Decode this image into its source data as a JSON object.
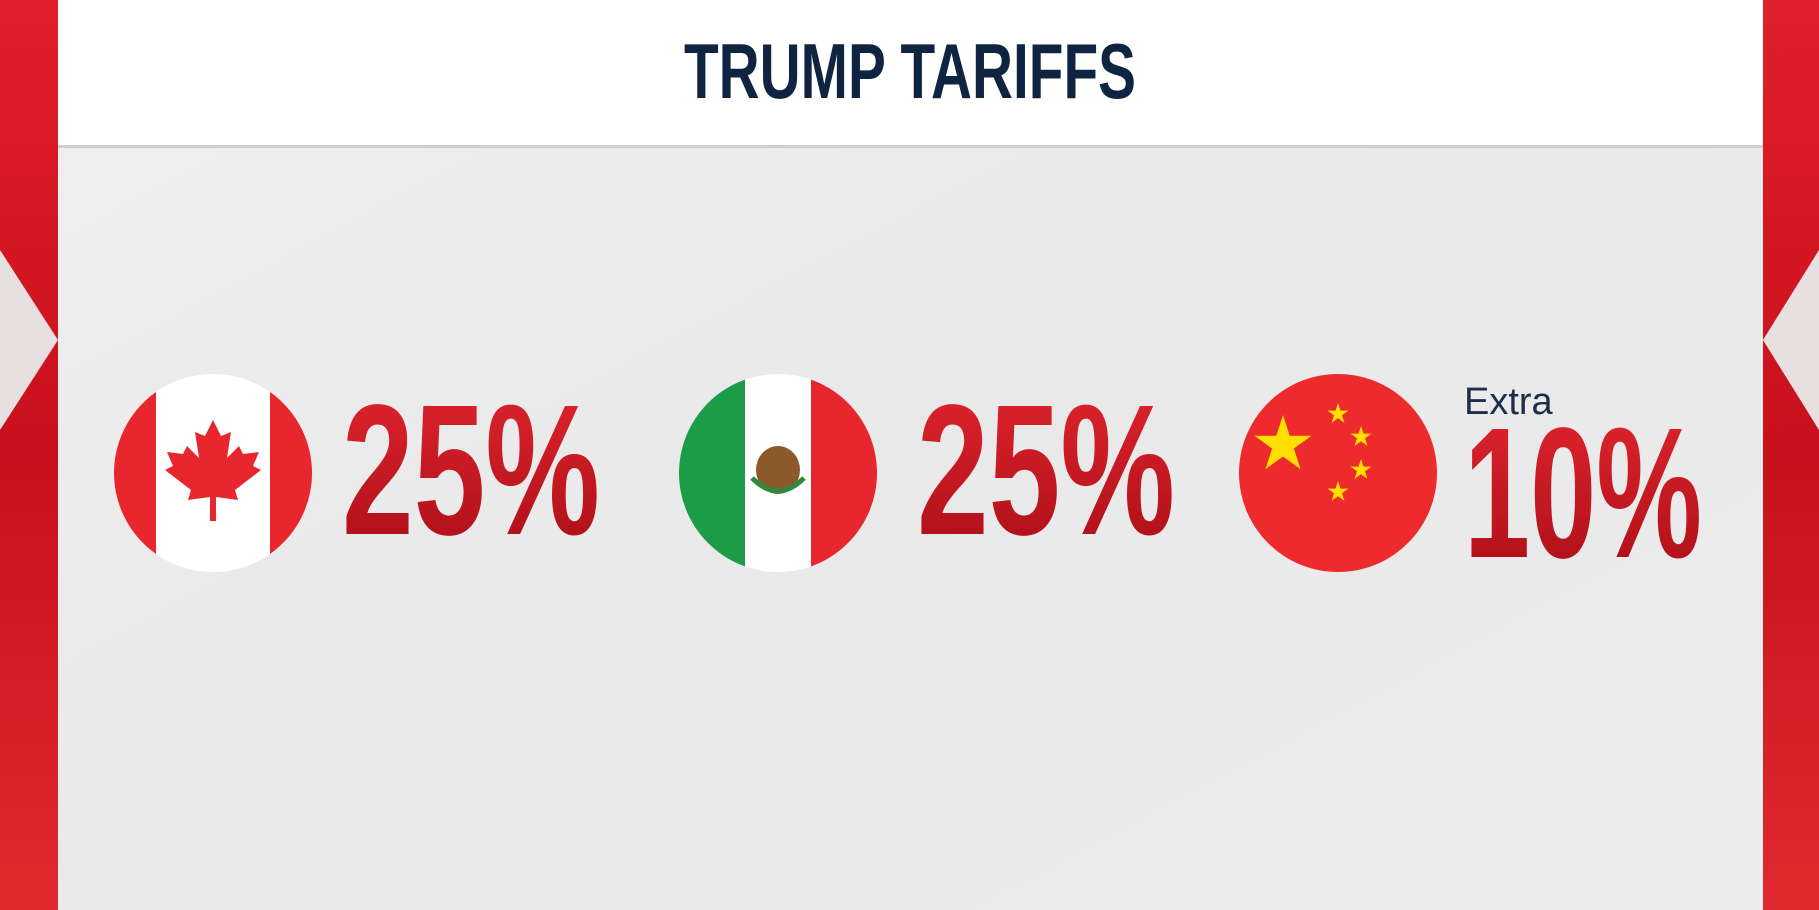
{
  "header": {
    "title": "TRUMP TARIFFS"
  },
  "items": [
    {
      "rate": "25%"
    },
    {
      "rate": "25%"
    },
    {
      "note": "Extra",
      "rate": "10%"
    }
  ]
}
